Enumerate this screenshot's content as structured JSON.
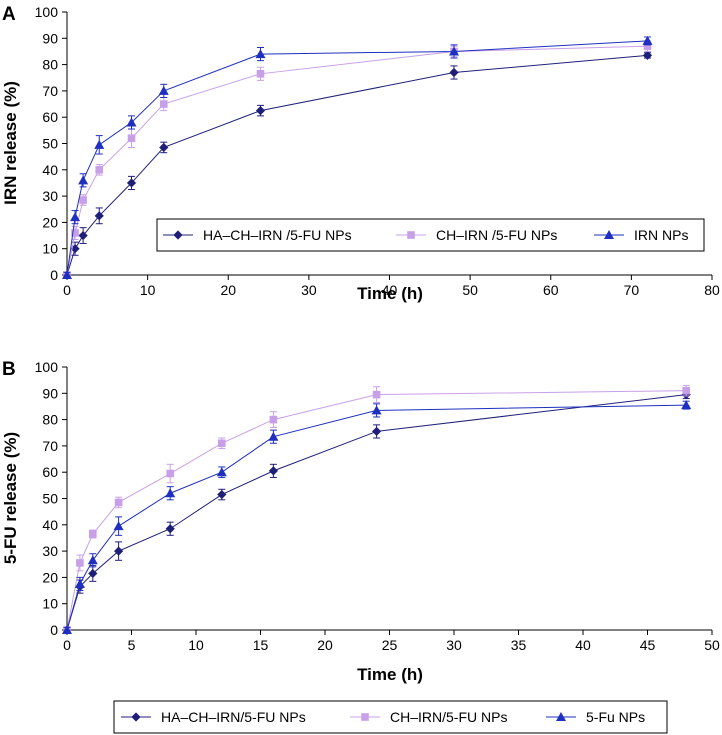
{
  "colors": {
    "HA_CH": "#1f1f7a",
    "CH": "#c8a0e8",
    "IRN": "#1f2fc0"
  },
  "chart_data": [
    {
      "type": "line",
      "panel_label": "A",
      "xlabel": "Time (h)",
      "ylabel": "IRN release (%)",
      "xlim": [
        0,
        80
      ],
      "ylim": [
        0,
        100
      ],
      "xticks": [
        0,
        10,
        20,
        30,
        40,
        50,
        60,
        70,
        80
      ],
      "yticks": [
        0,
        10,
        20,
        30,
        40,
        50,
        60,
        70,
        80,
        90,
        100
      ],
      "legend": "lower-right",
      "x": [
        0,
        1,
        2,
        4,
        8,
        12,
        24,
        48,
        72
      ],
      "series": [
        {
          "name": "HA–CH–IRN /5-FU NPs",
          "marker": "diamond",
          "color_key": "HA_CH",
          "values": [
            0,
            10,
            15,
            22.5,
            35,
            48.5,
            62.5,
            77,
            83.5
          ],
          "errors": [
            1,
            2.5,
            3,
            3,
            2.5,
            2,
            2,
            2.5,
            1
          ]
        },
        {
          "name": "CH–IRN /5-FU NPs",
          "marker": "square",
          "color_key": "CH",
          "values": [
            0,
            16,
            28.5,
            40,
            52,
            65,
            76.5,
            85,
            87
          ],
          "errors": [
            1,
            2.5,
            2,
            2,
            3.5,
            2.5,
            2.5,
            2,
            2
          ]
        },
        {
          "name": "IRN NPs",
          "marker": "triangle",
          "color_key": "IRN",
          "values": [
            0,
            22,
            36,
            49.5,
            58,
            70,
            84,
            85,
            89
          ],
          "errors": [
            1,
            2.5,
            2.5,
            3.5,
            2.5,
            2.5,
            2.5,
            2.5,
            1.5
          ]
        }
      ]
    },
    {
      "type": "line",
      "panel_label": "B",
      "xlabel": "Time (h)",
      "ylabel": "5-FU release (%)",
      "xlim": [
        0,
        50
      ],
      "ylim": [
        0,
        100
      ],
      "xticks": [
        0,
        5,
        10,
        15,
        20,
        25,
        30,
        35,
        40,
        45,
        50
      ],
      "yticks": [
        0,
        10,
        20,
        30,
        40,
        50,
        60,
        70,
        80,
        90,
        100
      ],
      "legend": "bottom",
      "x": [
        0,
        1,
        2,
        4,
        8,
        12,
        16,
        24,
        48
      ],
      "series": [
        {
          "name": "HA–CH–IRN/5-FU NPs",
          "marker": "diamond",
          "color_key": "HA_CH",
          "values": [
            0,
            16.5,
            21.5,
            30,
            38.5,
            51.5,
            60.5,
            75.5,
            89.5
          ],
          "errors": [
            1,
            2.5,
            3,
            3.5,
            2.5,
            2,
            2.5,
            2.5,
            1.5
          ]
        },
        {
          "name": "CH–IRN/5-FU NPs",
          "marker": "square",
          "color_key": "CH",
          "values": [
            0,
            25.5,
            36.5,
            48.5,
            59.5,
            71,
            80,
            89.5,
            91
          ],
          "errors": [
            1,
            3,
            1.5,
            2,
            3.5,
            2,
            3,
            3,
            2
          ]
        },
        {
          "name": "5-Fu NPs",
          "marker": "triangle",
          "color_key": "IRN",
          "values": [
            0,
            17.5,
            26.5,
            39.5,
            52,
            60,
            73.5,
            83.5,
            85.5
          ],
          "errors": [
            1,
            2.5,
            2.5,
            3.5,
            2.5,
            2,
            2.5,
            2.5,
            1.5
          ]
        }
      ]
    }
  ]
}
